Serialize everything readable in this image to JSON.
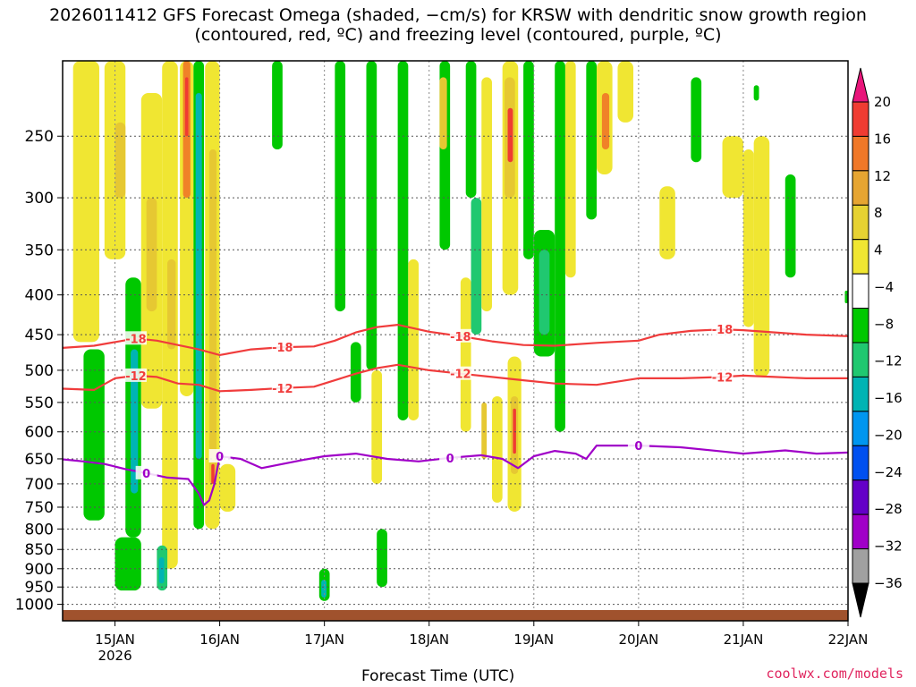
{
  "title": "2026011412 GFS Forecast Omega (shaded, −cm/s) for KRSW with dendritic snow growth region (contoured, red, ºC) and freezing level (contoured, purple, ºC)",
  "credit": "coolwx.com/models",
  "chart_data": {
    "type": "heatmap",
    "title": "2026011412 GFS Forecast Omega (shaded, −cm/s) for KRSW with dendritic snow growth region (contoured, red, ºC) and freezing level (contoured, purple, ºC)",
    "xlabel": "Forecast Time (UTC)",
    "ylabel": "",
    "x_ticks": [
      {
        "label": "15JAN",
        "sublabel": "2026",
        "value": 15
      },
      {
        "label": "16JAN",
        "value": 16
      },
      {
        "label": "17JAN",
        "value": 17
      },
      {
        "label": "18JAN",
        "value": 18
      },
      {
        "label": "19JAN",
        "value": 19
      },
      {
        "label": "20JAN",
        "value": 20
      },
      {
        "label": "21JAN",
        "value": 21
      },
      {
        "label": "22JAN",
        "value": 22
      }
    ],
    "xlim": [
      14.5,
      22.0
    ],
    "y_ticks": [
      250,
      300,
      350,
      400,
      450,
      500,
      550,
      600,
      650,
      700,
      750,
      800,
      850,
      900,
      950,
      1000
    ],
    "ylim": [
      1050,
      200
    ],
    "y_scale": "log",
    "grid": true,
    "colorbar": {
      "labels": [
        "20",
        "16",
        "12",
        "8",
        "4",
        "−4",
        "−8",
        "−12",
        "−16",
        "−20",
        "−24",
        "−28",
        "−32",
        "−36"
      ],
      "colors": [
        "#e8157a",
        "#f03c32",
        "#f07828",
        "#e6a532",
        "#e6d232",
        "#f0e632",
        "#ffffff",
        "#00c800",
        "#20c870",
        "#00b4b4",
        "#0096f0",
        "#0050f0",
        "#6400c8",
        "#a000c8",
        "#a0a0a0",
        "#000000"
      ]
    },
    "omega_colors": {
      "pos_weak": "#f0e632",
      "pos_mod": "#e6c832",
      "pos_strong": "#f08228",
      "pos_max": "#f03c32",
      "neg_weak": "#00c800",
      "neg_mod": "#20c870",
      "neg_strong": "#00b4b4"
    },
    "contours": [
      {
        "label": "-18",
        "color": "#f03c3c",
        "x": [
          14.5,
          14.8,
          15.0,
          15.2,
          15.4,
          15.6,
          15.8,
          16.0,
          16.3,
          16.6,
          16.9,
          17.1,
          17.3,
          17.5,
          17.7,
          18.0,
          18.3,
          18.6,
          18.9,
          19.2,
          19.6,
          20.0,
          20.2,
          20.5,
          20.8,
          21.0,
          21.3,
          21.6,
          22.0
        ],
        "y": [
          468,
          465,
          460,
          455,
          458,
          464,
          470,
          478,
          470,
          467,
          466,
          458,
          447,
          440,
          437,
          446,
          452,
          459,
          464,
          465,
          461,
          458,
          450,
          445,
          443,
          444,
          447,
          450,
          452
        ]
      },
      {
        "label": "-12",
        "color": "#f03c3c",
        "x": [
          14.5,
          14.8,
          15.0,
          15.2,
          15.4,
          15.6,
          15.8,
          16.0,
          16.3,
          16.6,
          16.9,
          17.1,
          17.3,
          17.5,
          17.7,
          18.0,
          18.3,
          18.6,
          18.9,
          19.2,
          19.6,
          20.0,
          20.4,
          20.8,
          21.0,
          21.3,
          21.6,
          22.0
        ],
        "y": [
          528,
          530,
          512,
          508,
          510,
          520,
          522,
          532,
          530,
          527,
          525,
          515,
          505,
          497,
          492,
          500,
          505,
          510,
          515,
          520,
          522,
          512,
          512,
          510,
          508,
          510,
          512,
          512
        ]
      },
      {
        "label": "0",
        "color": "#a000c8",
        "x": [
          14.5,
          14.7,
          14.9,
          15.1,
          15.3,
          15.5,
          15.7,
          15.8,
          15.85,
          15.9,
          15.95,
          16.0,
          16.2,
          16.4,
          16.6,
          16.8,
          17.0,
          17.3,
          17.6,
          17.9,
          18.2,
          18.5,
          18.7,
          18.85,
          19.0,
          19.2,
          19.4,
          19.5,
          19.6,
          20.0,
          20.4,
          20.8,
          21.0,
          21.4,
          21.7,
          22.0
        ],
        "y": [
          651,
          655,
          660,
          670,
          678,
          687,
          690,
          720,
          745,
          735,
          700,
          645,
          650,
          668,
          660,
          652,
          645,
          640,
          650,
          655,
          648,
          643,
          650,
          668,
          645,
          635,
          640,
          650,
          625,
          625,
          628,
          636,
          640,
          634,
          640,
          638
        ]
      }
    ]
  }
}
